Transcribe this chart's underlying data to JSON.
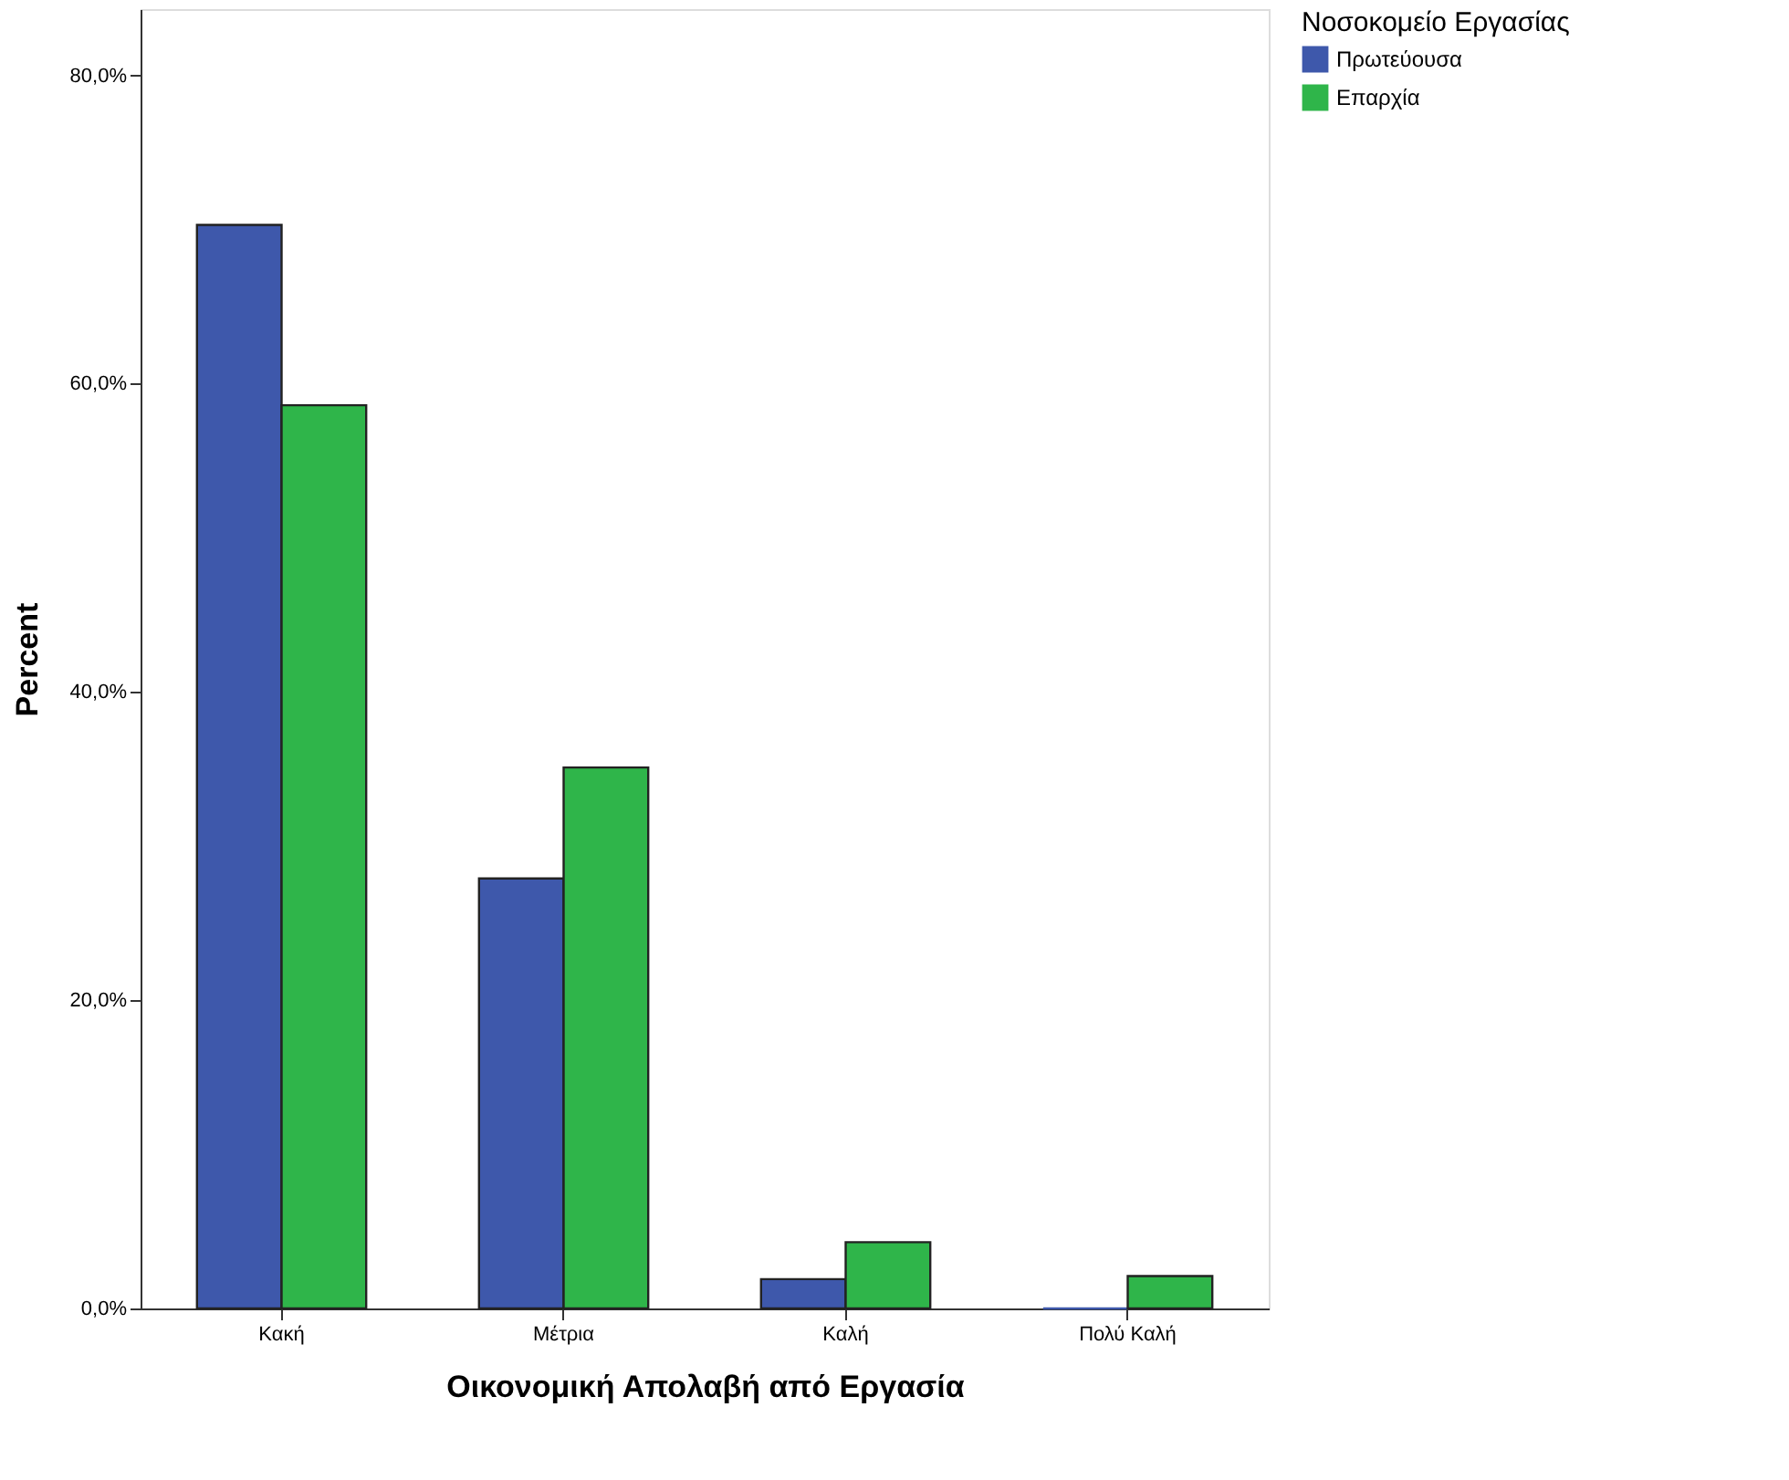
{
  "chart_data": {
    "type": "bar",
    "xlabel": "Οικονομική Απολαβή από Εργασία",
    "ylabel": "Percent",
    "legend_title": "Νοσοκομείο Εργασίας",
    "legend": "top right",
    "categories": [
      "Κακή",
      "Μέτρια",
      "Καλή",
      "Πολύ Καλή"
    ],
    "series": [
      {
        "name": "Πρωτεύουσα",
        "color": "#3e58ab",
        "values": [
          70.3,
          27.9,
          1.9,
          0
        ]
      },
      {
        "name": "Επαρχία",
        "color": "#2fb54a",
        "values": [
          58.6,
          35.1,
          4.3,
          2.1
        ]
      }
    ],
    "ylim": [
      0,
      84.3
    ],
    "yticks": [
      {
        "value": 0,
        "label": "0,0%"
      },
      {
        "value": 20,
        "label": "20,0%"
      },
      {
        "value": 40,
        "label": "40,0%"
      },
      {
        "value": 60,
        "label": "60,0%"
      },
      {
        "value": 80,
        "label": "80,0%"
      }
    ],
    "grid": false
  }
}
